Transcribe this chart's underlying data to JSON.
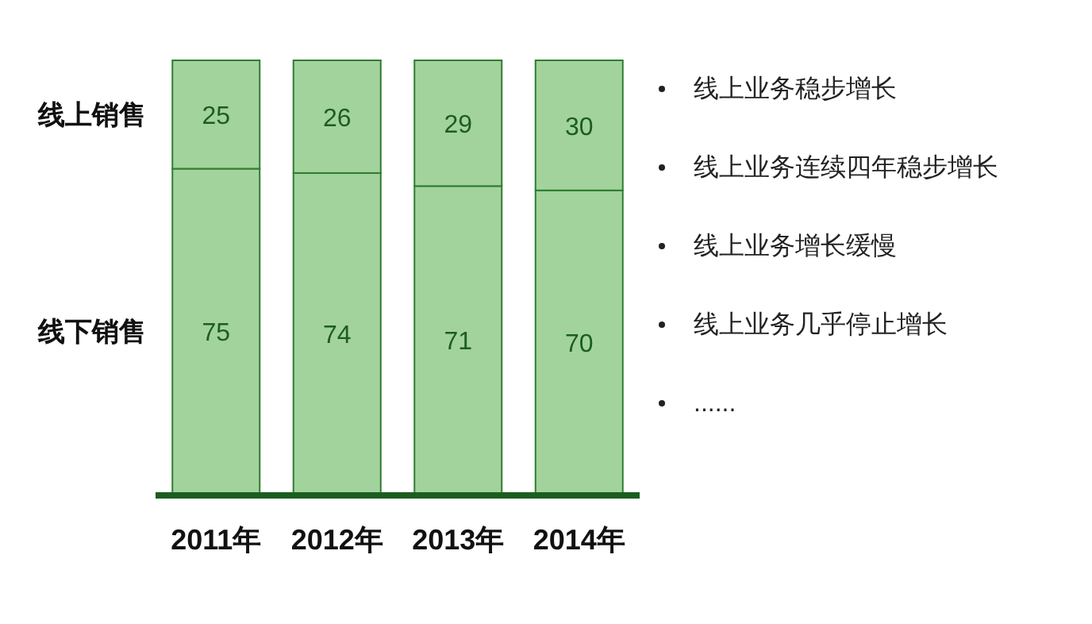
{
  "chart_data": {
    "type": "bar",
    "stacked": true,
    "data_labels": true,
    "categories": [
      "2011年",
      "2012年",
      "2013年",
      "2014年"
    ],
    "series": [
      {
        "name": "线下销售",
        "color": "#a3d39c",
        "values": [
          75,
          74,
          71,
          70
        ]
      },
      {
        "name": "线上销售",
        "color": "#a3d39c",
        "values": [
          25,
          26,
          29,
          30
        ]
      }
    ],
    "annotations": [
      "线上业务稳步增长",
      "线上业务连续四年稳步增长",
      "线上业务增长缓慢",
      "线上业务几乎停止增长",
      "......"
    ]
  }
}
